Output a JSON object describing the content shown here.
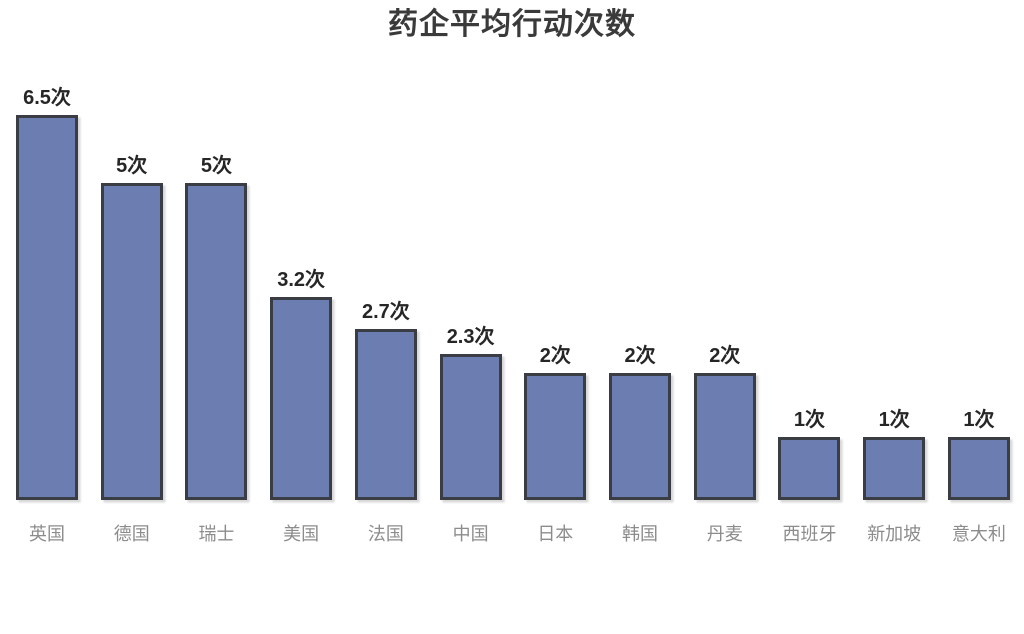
{
  "title": "药企平均行动次数",
  "chart_data": {
    "type": "bar",
    "title": "药企平均行动次数",
    "xlabel": "",
    "ylabel": "",
    "categories": [
      "英国",
      "德国",
      "瑞士",
      "美国",
      "法国",
      "中国",
      "日本",
      "韩国",
      "丹麦",
      "西班牙",
      "新加坡",
      "意大利"
    ],
    "values": [
      6.5,
      5,
      5,
      3.2,
      2.7,
      2.3,
      2,
      2,
      2,
      1,
      1,
      1
    ],
    "value_labels": [
      "6.5次",
      "5次",
      "5次",
      "3.2次",
      "2.7次",
      "2.3次",
      "2次",
      "2次",
      "2次",
      "1次",
      "1次",
      "1次"
    ],
    "unit": "次",
    "ylim": [
      0,
      6.5
    ],
    "grid": false,
    "legend": false,
    "axis_lines": false,
    "colors": {
      "bar_fill": "#6C7EB1",
      "bar_border": "#3A3D43",
      "value_label": "#262626",
      "category_label": "#8C8C8C",
      "title": "#3A3A3A"
    }
  }
}
